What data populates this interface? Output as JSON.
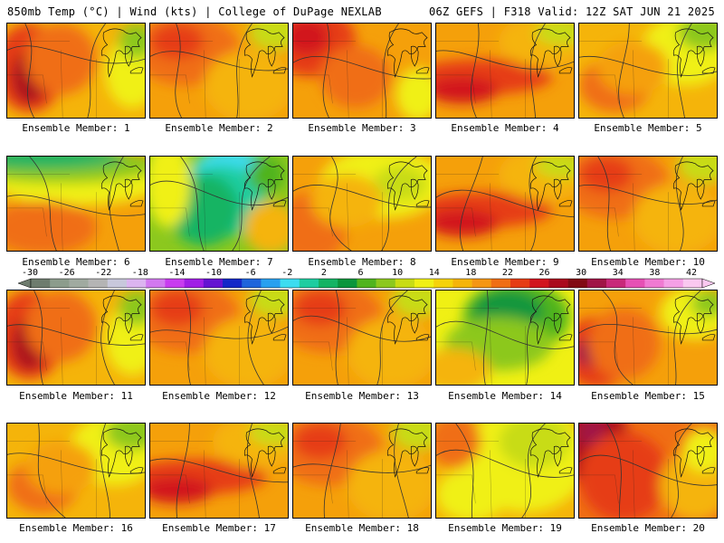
{
  "header": {
    "left": "850mb Temp (°C) | Wind (kts) | College of DuPage NEXLAB",
    "right": "06Z GEFS | F318 Valid: 12Z SAT JUN 21 2025"
  },
  "colorbar": {
    "labels": [
      "-30",
      "-26",
      "-22",
      "-18",
      "-14",
      "-10",
      "-6",
      "-2",
      "2",
      "6",
      "10",
      "14",
      "18",
      "22",
      "26",
      "30",
      "34",
      "38",
      "42"
    ],
    "colors": [
      "#6e7c6e",
      "#8c9c8c",
      "#a0aaa0",
      "#b4b4b4",
      "#c8c8dc",
      "#dcb4f0",
      "#d278f0",
      "#c83cf0",
      "#a01ee6",
      "#6414d2",
      "#1428c8",
      "#1e64dc",
      "#28a0f0",
      "#3cdcf0",
      "#1ecda0",
      "#14b464",
      "#0a963c",
      "#50b41e",
      "#8cc81e",
      "#c8dc14",
      "#f0f014",
      "#f5d20a",
      "#f5b40a",
      "#f59614",
      "#f06e14",
      "#e63c14",
      "#d2141e",
      "#aa0a1e",
      "#820a14",
      "#a01446",
      "#c8287a",
      "#e650b4",
      "#f07ad2",
      "#f5a0e6",
      "#fac8f0"
    ]
  },
  "members": [
    {
      "label": "Ensemble Member: 1",
      "style": "hotwest"
    },
    {
      "label": "Ensemble Member: 2",
      "style": "warm"
    },
    {
      "label": "Ensemble Member: 3",
      "style": "hotnw"
    },
    {
      "label": "Ensemble Member: 4",
      "style": "redband"
    },
    {
      "label": "Ensemble Member: 5",
      "style": "mild"
    },
    {
      "label": "Ensemble Member: 6",
      "style": "coolnorth"
    },
    {
      "label": "Ensemble Member: 7",
      "style": "cold"
    },
    {
      "label": "Ensemble Member: 8",
      "style": "yellownorth"
    },
    {
      "label": "Ensemble Member: 9",
      "style": "redband"
    },
    {
      "label": "Ensemble Member: 10",
      "style": "warm"
    },
    {
      "label": "Ensemble Member: 11",
      "style": "hotwest"
    },
    {
      "label": "Ensemble Member: 12",
      "style": "warm"
    },
    {
      "label": "Ensemble Member: 13",
      "style": "warm"
    },
    {
      "label": "Ensemble Member: 14",
      "style": "greennorth"
    },
    {
      "label": "Ensemble Member: 15",
      "style": "hotsw"
    },
    {
      "label": "Ensemble Member: 16",
      "style": "mild"
    },
    {
      "label": "Ensemble Member: 17",
      "style": "redband"
    },
    {
      "label": "Ensemble Member: 18",
      "style": "warm"
    },
    {
      "label": "Ensemble Member: 19",
      "style": "yellow"
    },
    {
      "label": "Ensemble Member: 20",
      "style": "hotnw2"
    }
  ]
}
